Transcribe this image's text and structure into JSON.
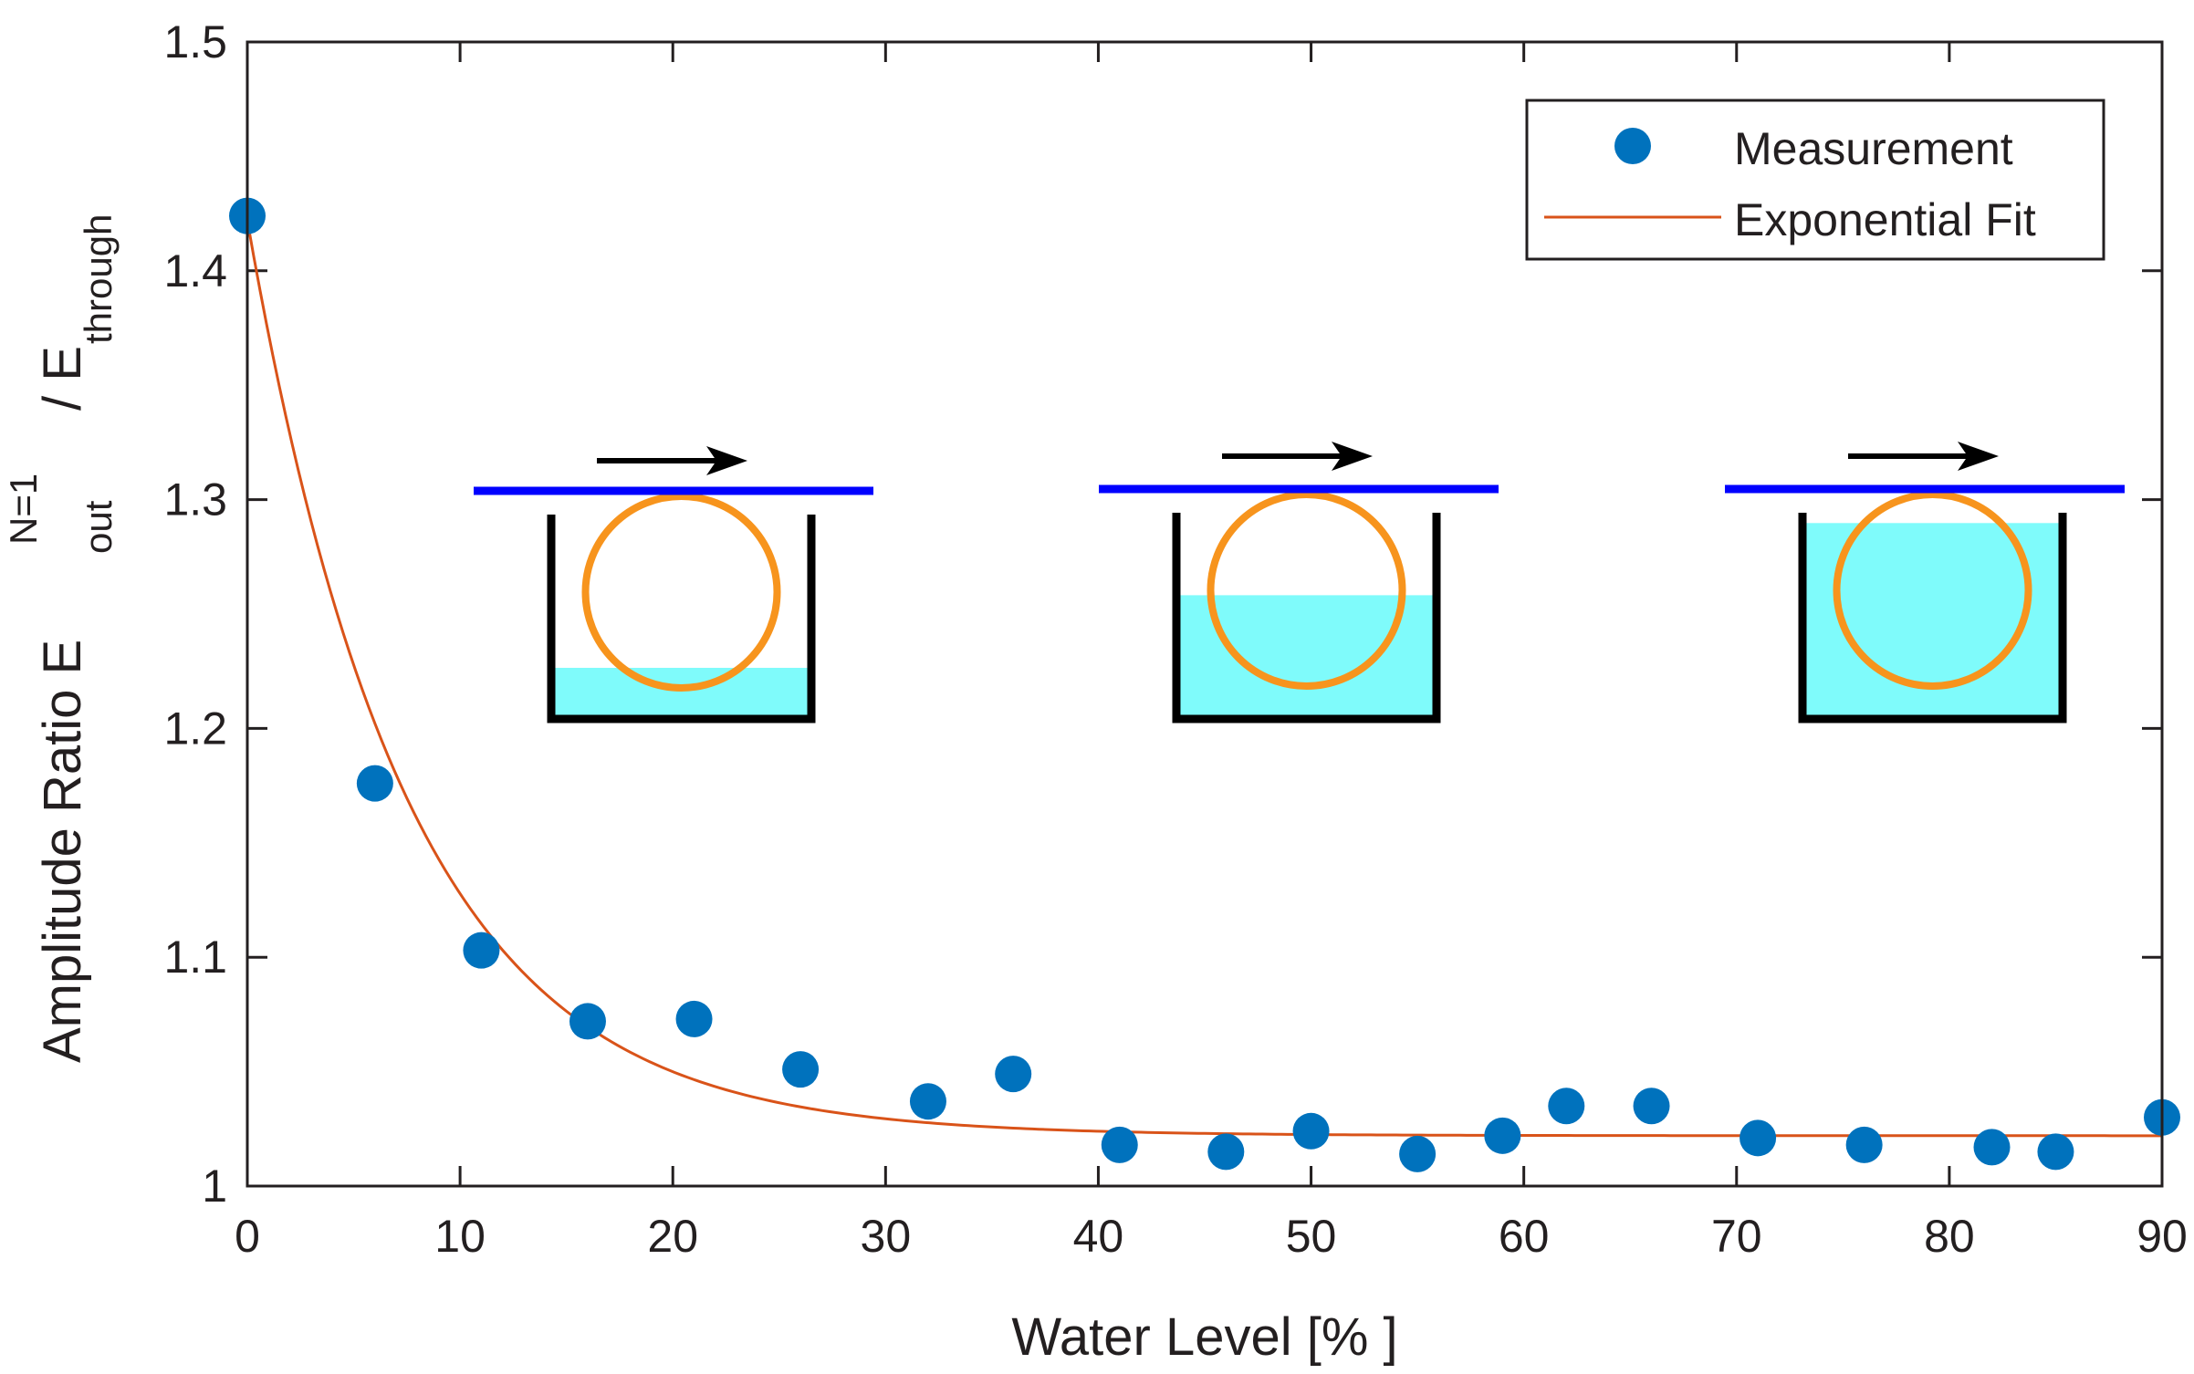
{
  "chart_data": {
    "type": "scatter",
    "xlabel": "Water Level [% ]",
    "ylabel": {
      "main": "Amplitude Ratio E",
      "sup": "N=1",
      "sub": "out",
      "divider": "/ E",
      "sub2": "through"
    },
    "xlim": [
      0,
      90
    ],
    "ylim": [
      1,
      1.5
    ],
    "x_ticks": [
      0,
      10,
      20,
      30,
      40,
      50,
      60,
      70,
      80,
      90
    ],
    "x_tick_labels": [
      "0",
      "10",
      "20",
      "30",
      "40",
      "50",
      "60",
      "70",
      "80",
      "90"
    ],
    "y_ticks": [
      1,
      1.1,
      1.2,
      1.3,
      1.4,
      1.5
    ],
    "y_tick_labels": [
      "1",
      "1.1",
      "1.2",
      "1.3",
      "1.4",
      "1.5"
    ],
    "grid": false,
    "legend_position": "top-right",
    "series": [
      {
        "name": "Measurement",
        "type": "scatter",
        "color": "#0072bd",
        "x": [
          0,
          6,
          11,
          16,
          21,
          26,
          32,
          36,
          41,
          46,
          50,
          55,
          59,
          62,
          66,
          71,
          76,
          82,
          85,
          90
        ],
        "y": [
          1.424,
          1.176,
          1.103,
          1.072,
          1.073,
          1.051,
          1.037,
          1.049,
          1.018,
          1.015,
          1.024,
          1.014,
          1.022,
          1.035,
          1.035,
          1.021,
          1.018,
          1.017,
          1.015,
          1.03
        ]
      },
      {
        "name": "Exponential Fit",
        "type": "line",
        "color": "#d95319",
        "model": {
          "asymptote": 1.022,
          "amplitude": 0.4,
          "decay_per_percent": 0.133
        }
      }
    ],
    "insets": [
      {
        "name": "low-water-inset",
        "water_fill": 0.25
      },
      {
        "name": "mid-water-inset",
        "water_fill": 0.6
      },
      {
        "name": "high-water-inset",
        "water_fill": 0.95
      }
    ],
    "colors": {
      "waveguide": "#0000ff",
      "ring": "#f7941d",
      "water": "#7ffbfb",
      "container": "#000000",
      "axis": "#231f20"
    }
  }
}
